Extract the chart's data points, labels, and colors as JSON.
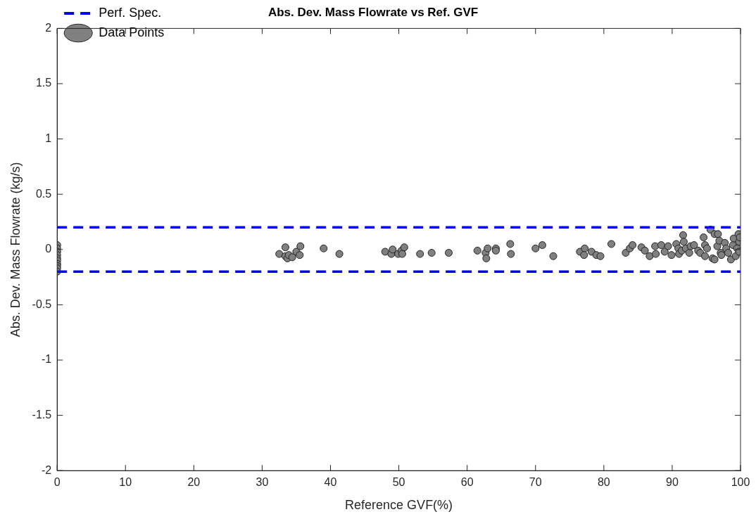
{
  "chart_data": {
    "type": "scatter",
    "title": "Abs. Dev. Mass Flowrate vs Ref. GVF",
    "xlabel": "Reference GVF(%)",
    "ylabel": "Abs. Dev. Mass Flowrate (kg/s)",
    "xlim": [
      0,
      100
    ],
    "xticks": [
      0,
      10,
      20,
      30,
      40,
      50,
      60,
      70,
      80,
      90,
      100
    ],
    "ylim": [
      -2,
      2
    ],
    "yticks": [
      -2,
      -1.5,
      -1,
      -0.5,
      0,
      0.5,
      1,
      1.5,
      2
    ],
    "grid": false,
    "legend": "top left",
    "marker": "circle",
    "series": [
      {
        "type": "line",
        "name": "Perf. Spec.",
        "color": "#0000ff",
        "line_style": "dashed",
        "marker": "none",
        "x": [
          0,
          100
        ],
        "values": [
          0.2,
          0.2
        ]
      },
      {
        "type": "line",
        "color": "#0000ff",
        "line_style": "dashed",
        "marker": "none",
        "x": [
          0,
          100
        ],
        "values": [
          -0.2,
          -0.2
        ]
      },
      {
        "type": "scatter",
        "name": "Data Points",
        "color": "#808080",
        "x": [
          0,
          0,
          0,
          0,
          0,
          0,
          0,
          0,
          0,
          0,
          32.5,
          33.4,
          33.4,
          33.7,
          33.9,
          34.4,
          35.0,
          35.5,
          35.6,
          39.0,
          41.3,
          48.0,
          48.9,
          49.1,
          49.9,
          50.4,
          50.5,
          50.8,
          53.1,
          54.8,
          57.3,
          61.5,
          62.7,
          62.8,
          63.0,
          64.2,
          64.2,
          66.3,
          66.4,
          70.0,
          71.0,
          72.6,
          76.5,
          77.2,
          77.1,
          78.2,
          78.9,
          79.5,
          81.1,
          83.2,
          83.8,
          84.2,
          85.5,
          86.0,
          86.7,
          87.5,
          87.6,
          88.4,
          88.9,
          89.4,
          89.9,
          90.6,
          90.9,
          91.0,
          91.4,
          91.6,
          91.7,
          92.0,
          92.5,
          92.7,
          93.2,
          93.8,
          94.1,
          94.6,
          94.8,
          94.8,
          95.1,
          95.6,
          95.9,
          96.2,
          96.2,
          96.6,
          96.7,
          96.9,
          97.1,
          97.2,
          97.7,
          97.9,
          98.2,
          98.6,
          98.9,
          99.0,
          99.3,
          99.5,
          99.7,
          99.8,
          99.8,
          99.9
        ],
        "values": [
          0.04,
          0.01,
          -0.02,
          -0.05,
          -0.08,
          -0.1,
          -0.13,
          -0.15,
          -0.17,
          -0.2,
          -0.04,
          0.02,
          -0.06,
          -0.08,
          -0.05,
          -0.07,
          -0.02,
          -0.05,
          0.03,
          0.01,
          -0.04,
          -0.02,
          -0.04,
          0.0,
          -0.04,
          -0.01,
          -0.04,
          0.02,
          -0.04,
          -0.03,
          -0.03,
          -0.01,
          -0.03,
          -0.08,
          0.01,
          0.01,
          -0.01,
          0.05,
          -0.04,
          0.01,
          0.04,
          -0.06,
          -0.02,
          0.01,
          -0.05,
          -0.02,
          -0.05,
          -0.06,
          0.05,
          -0.03,
          0.01,
          0.04,
          0.02,
          -0.01,
          -0.06,
          0.03,
          -0.04,
          0.04,
          -0.02,
          0.03,
          -0.05,
          0.05,
          0.01,
          -0.04,
          -0.01,
          0.13,
          0.07,
          0.01,
          -0.03,
          0.03,
          0.04,
          -0.01,
          -0.03,
          0.11,
          0.04,
          -0.06,
          0.01,
          0.18,
          -0.08,
          0.14,
          -0.09,
          0.03,
          0.14,
          0.08,
          -0.03,
          -0.05,
          0.06,
          0.01,
          -0.03,
          -0.09,
          0.04,
          0.1,
          -0.06,
          0.01,
          0.14,
          0.07,
          -0.02,
          0.11
        ]
      }
    ]
  }
}
